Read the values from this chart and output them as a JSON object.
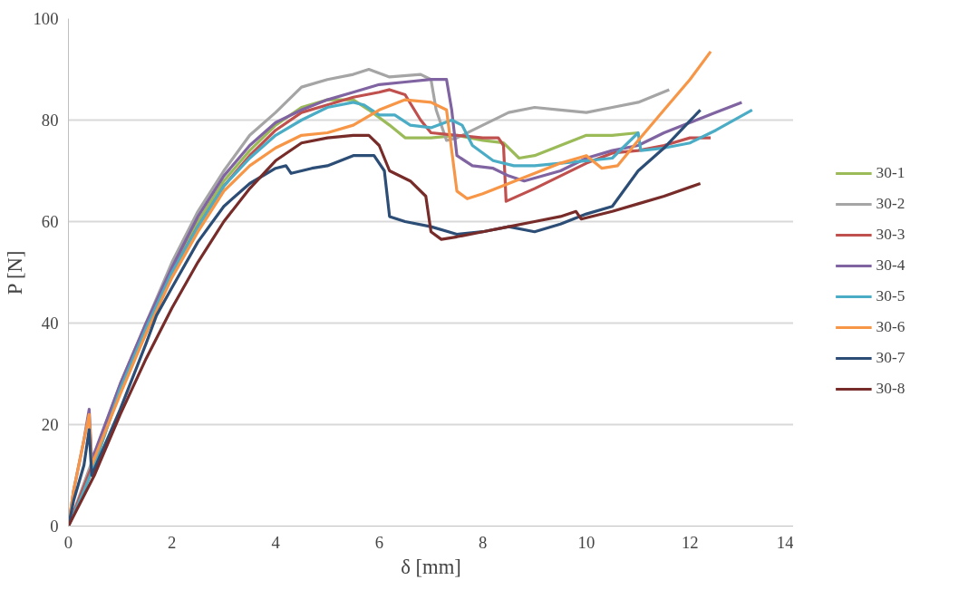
{
  "chart_data": {
    "type": "line",
    "xlabel": "δ [mm]",
    "ylabel": "P [N]",
    "xlim": [
      0,
      14
    ],
    "xticks": [
      0,
      2,
      4,
      6,
      8,
      10,
      12,
      14
    ],
    "ylim": [
      0,
      100
    ],
    "yticks": [
      0,
      20,
      40,
      60,
      80,
      100
    ],
    "grid": "y",
    "legend": "right",
    "marker": "none",
    "line_style": "solid",
    "series": [
      {
        "name": "30-1",
        "color": "#9bbb59",
        "x": [
          0,
          0.5,
          1,
          1.5,
          2,
          2.5,
          3,
          3.5,
          4,
          4.5,
          5,
          5.5,
          5.8,
          6.2,
          6.5,
          7,
          7.5,
          8,
          8.4,
          8.7,
          9,
          9.5,
          10,
          10.5,
          11
        ],
        "values": [
          0,
          12,
          27,
          38,
          50,
          60,
          68,
          74,
          79,
          82.5,
          84,
          84,
          82,
          79,
          76.5,
          76.5,
          77,
          76,
          75.5,
          72.5,
          73,
          75,
          77,
          77,
          77.5
        ]
      },
      {
        "name": "30-2",
        "color": "#a5a5a5",
        "x": [
          0,
          1,
          1.5,
          2,
          2.5,
          3,
          3.5,
          4,
          4.5,
          5,
          5.5,
          5.8,
          6.2,
          6.8,
          7,
          7.1,
          7.3,
          7.5,
          8,
          8.5,
          9,
          9.5,
          10,
          10.5,
          11,
          11.6
        ],
        "values": [
          0,
          28,
          40,
          52,
          62,
          70,
          77,
          81.5,
          86.5,
          88,
          89,
          90,
          88.5,
          89,
          88,
          82,
          76,
          76.5,
          79,
          81.5,
          82.5,
          82,
          81.5,
          82.5,
          83.5,
          86
        ]
      },
      {
        "name": "30-3",
        "color": "#c0504d",
        "x": [
          0,
          0.5,
          1,
          1.5,
          2,
          2.5,
          3,
          3.5,
          4,
          4.5,
          5,
          5.5,
          6,
          6.2,
          6.5,
          6.8,
          7,
          7.5,
          8,
          8.3,
          8.4,
          8.45,
          9,
          9.5,
          10,
          10.5,
          11,
          11.5,
          12,
          12.4
        ],
        "values": [
          0,
          13,
          27,
          39,
          50,
          59,
          67,
          73,
          78,
          81.5,
          83,
          84.5,
          85.5,
          86,
          85,
          80,
          77.5,
          77,
          76.5,
          76.5,
          75,
          64,
          66.5,
          69,
          71.5,
          73.5,
          74,
          75,
          76.5,
          76.5
        ]
      },
      {
        "name": "30-4",
        "color": "#8064a2",
        "x": [
          0,
          0.1,
          0.3,
          0.4,
          0.45,
          1,
          1.5,
          2,
          2.5,
          3,
          3.5,
          4,
          4.5,
          5,
          5.5,
          6,
          6.5,
          7,
          7.3,
          7.4,
          7.5,
          7.8,
          8.2,
          8.5,
          8.8,
          9.5,
          10,
          10.5,
          11,
          11.5,
          12,
          12.5,
          13
        ],
        "values": [
          0,
          7,
          17,
          23,
          13,
          28,
          40,
          51,
          61,
          69,
          75,
          79.5,
          82,
          84,
          85.5,
          87,
          87.5,
          88,
          88,
          82,
          73,
          71,
          70.5,
          69,
          68,
          70,
          72.5,
          74,
          75,
          77.5,
          79.5,
          81.5,
          83.5
        ]
      },
      {
        "name": "30-5",
        "color": "#4bacc6",
        "x": [
          0,
          0.3,
          0.5,
          1,
          1.5,
          2,
          2.5,
          3,
          3.5,
          4,
          4.5,
          5,
          5.5,
          5.7,
          6,
          6.3,
          6.6,
          7,
          7.4,
          7.6,
          7.8,
          8.2,
          8.6,
          9,
          9.5,
          10,
          10.5,
          11,
          11.05,
          11.5,
          12,
          12.5,
          13.2
        ],
        "values": [
          0,
          7,
          12,
          27,
          39,
          50,
          59,
          67,
          72.5,
          77,
          80,
          82.5,
          83.5,
          83,
          81,
          81,
          79,
          78.5,
          80,
          79,
          75,
          72,
          71,
          71,
          71.5,
          72,
          72.5,
          77.5,
          74,
          74.5,
          75.5,
          78,
          82
        ]
      },
      {
        "name": "30-6",
        "color": "#f79646",
        "x": [
          0,
          0.1,
          0.3,
          0.4,
          0.45,
          1,
          1.5,
          2,
          2.5,
          3,
          3.5,
          4,
          4.5,
          5,
          5.5,
          6,
          6.5,
          7,
          7.3,
          7.5,
          7.7,
          8,
          8.5,
          9,
          9.5,
          10,
          10.3,
          10.6,
          11,
          11.5,
          12,
          12.4
        ],
        "values": [
          0,
          7,
          17,
          22,
          12,
          26,
          38,
          49,
          58,
          66,
          71,
          74.5,
          77,
          77.5,
          79,
          82,
          84,
          83.5,
          82,
          66,
          64.5,
          65.5,
          67.5,
          69.5,
          71.5,
          73,
          70.5,
          71,
          76,
          82,
          88,
          93.5
        ]
      },
      {
        "name": "30-7",
        "color": "#2c4d75",
        "x": [
          0,
          0.1,
          0.3,
          0.4,
          0.45,
          1,
          1.5,
          1.7,
          2,
          2.5,
          3,
          3.5,
          4,
          4.2,
          4.3,
          4.7,
          5,
          5.5,
          5.9,
          6.1,
          6.2,
          6.5,
          7,
          7.5,
          8,
          8.5,
          9,
          9.5,
          10,
          10.5,
          11,
          11.5,
          12.2
        ],
        "values": [
          0,
          5,
          12,
          19,
          10,
          23,
          36,
          41.5,
          47,
          56,
          63,
          67.5,
          70.5,
          71,
          69.5,
          70.5,
          71,
          73,
          73,
          70,
          61,
          60,
          59,
          57.5,
          58,
          59,
          58,
          59.5,
          61.5,
          63,
          70,
          74.5,
          82
        ]
      },
      {
        "name": "30-8",
        "color": "#772c2a",
        "x": [
          0,
          0.5,
          1,
          1.5,
          2,
          2.5,
          3,
          3.5,
          4,
          4.5,
          5,
          5.5,
          5.8,
          6,
          6.2,
          6.6,
          6.9,
          7,
          7.2,
          7.5,
          8,
          8.5,
          9,
          9.5,
          9.8,
          9.9,
          10.5,
          11,
          11.5,
          12.2
        ],
        "values": [
          0,
          10,
          22,
          33,
          43,
          52,
          60,
          66.5,
          72,
          75.5,
          76.5,
          77,
          77,
          75,
          70,
          68,
          65,
          58,
          56.5,
          57,
          58,
          59,
          60,
          61,
          62,
          60.5,
          62,
          63.5,
          65,
          67.5
        ]
      }
    ]
  }
}
